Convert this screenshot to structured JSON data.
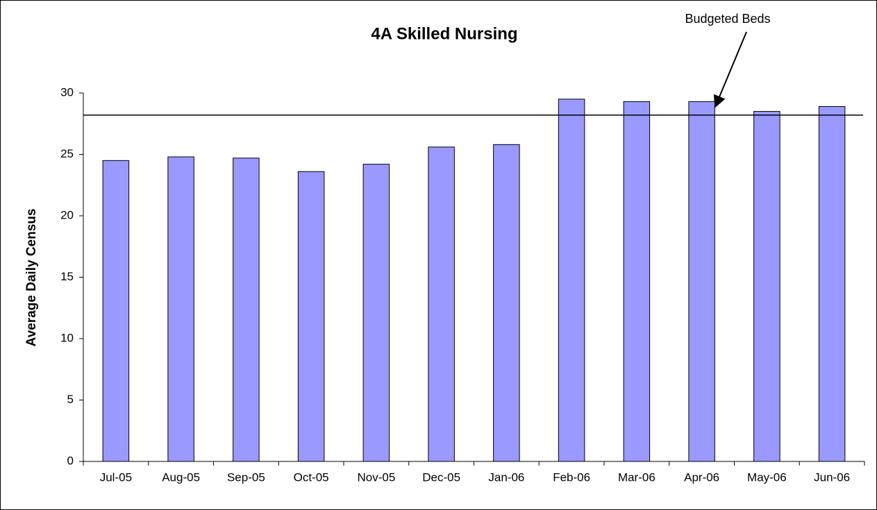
{
  "chart_data": {
    "type": "bar",
    "title": "4A Skilled Nursing",
    "y_label": "Average Daily Census",
    "categories": [
      "Jul-05",
      "Aug-05",
      "Sep-05",
      "Oct-05",
      "Nov-05",
      "Dec-05",
      "Jan-06",
      "Feb-06",
      "Mar-06",
      "Apr-06",
      "May-06",
      "Jun-06"
    ],
    "values": [
      24.5,
      24.8,
      24.7,
      23.6,
      24.2,
      25.6,
      25.8,
      29.5,
      29.3,
      29.3,
      28.5,
      28.9
    ],
    "color": "#9999ff",
    "reference_line": {
      "label": "Budgeted Beds",
      "value": 28.2
    },
    "ylim": [
      0,
      30
    ],
    "yticks": [
      0,
      5,
      10,
      15,
      20,
      25,
      30
    ],
    "grid": false
  }
}
